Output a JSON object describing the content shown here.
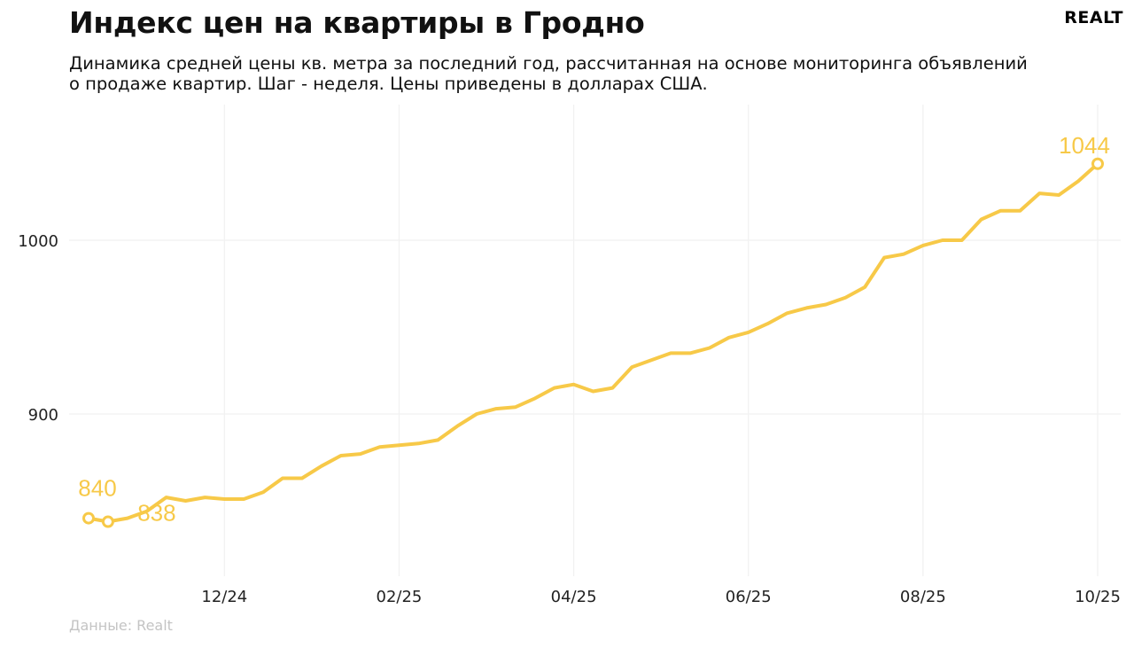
{
  "header": {
    "title": "Индекс цен на квартиры в Гродно",
    "subtitle": "Динамика средней цены кв. метра за последний год, рассчитанная на основе мониторинга объявлений о продаже квартир. Шаг - неделя. Цены приведены в долларах США.",
    "brand": "REALT"
  },
  "footer": {
    "source": "Данные: Realt"
  },
  "colors": {
    "line": "#f7c948",
    "grid": "#f1f1f1",
    "text": "#111111",
    "source": "#c4c4c4"
  },
  "chart_data": {
    "type": "line",
    "title": "Индекс цен на квартиры в Гродно",
    "xlabel": "",
    "ylabel": "",
    "ylim": [
      810,
      1080
    ],
    "grid": true,
    "yticks": [
      900,
      1000
    ],
    "xticks": [
      {
        "label": "12/24",
        "index": 7
      },
      {
        "label": "02/25",
        "index": 16
      },
      {
        "label": "04/25",
        "index": 25
      },
      {
        "label": "06/25",
        "index": 34
      },
      {
        "label": "08/25",
        "index": 43
      },
      {
        "label": "10/25",
        "index": 52
      }
    ],
    "series": [
      {
        "values": [
          840,
          838,
          840,
          844,
          852,
          850,
          852,
          851,
          851,
          855,
          863,
          863,
          870,
          876,
          877,
          881,
          882,
          883,
          885,
          893,
          900,
          903,
          904,
          909,
          915,
          917,
          913,
          915,
          927,
          931,
          935,
          935,
          938,
          944,
          947,
          952,
          958,
          961,
          963,
          967,
          973,
          990,
          992,
          997,
          1000,
          1000,
          1012,
          1017,
          1017,
          1027,
          1026,
          1034,
          1044
        ],
        "point_labels": [
          {
            "index": 0,
            "text": "840"
          },
          {
            "index": 1,
            "text": "838"
          },
          {
            "index": 52,
            "text": "1044"
          }
        ]
      }
    ]
  }
}
